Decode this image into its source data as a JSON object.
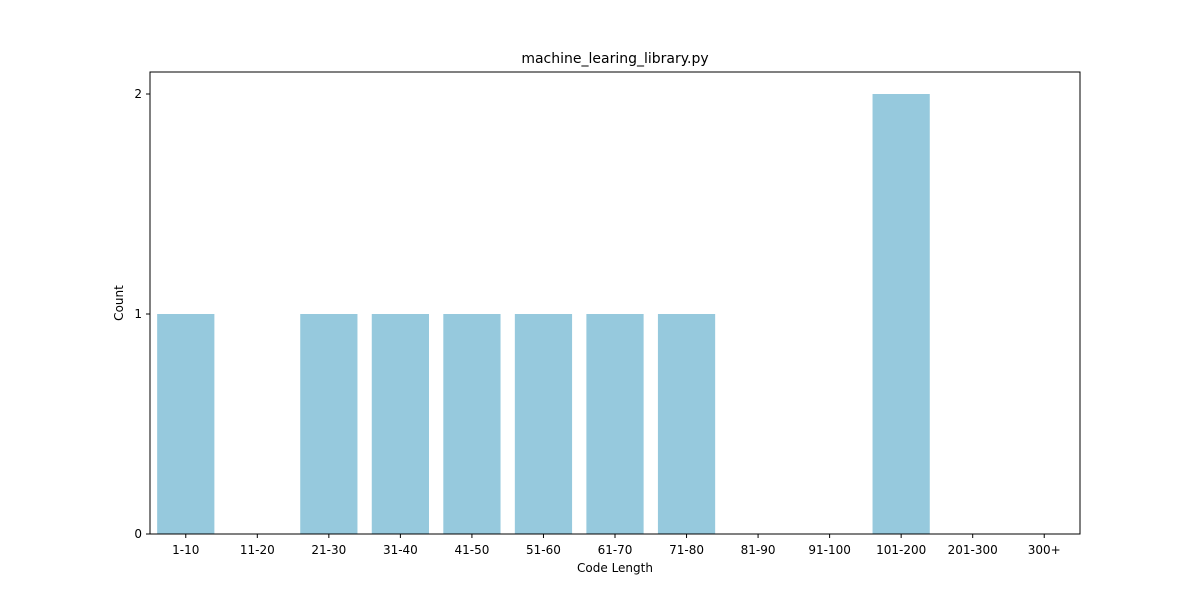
{
  "chart_data": {
    "type": "bar",
    "title": "machine_learing_library.py",
    "xlabel": "Code Length",
    "ylabel": "Count",
    "categories": [
      "1-10",
      "11-20",
      "21-30",
      "31-40",
      "41-50",
      "51-60",
      "61-70",
      "71-80",
      "81-90",
      "91-100",
      "101-200",
      "201-300",
      "300+"
    ],
    "values": [
      1,
      0,
      1,
      1,
      1,
      1,
      1,
      1,
      0,
      0,
      2,
      0,
      0
    ],
    "ylim": [
      0,
      2.1
    ],
    "yticks": [
      0,
      1,
      2
    ],
    "grid": false,
    "bar_color": "#96c9dd"
  }
}
